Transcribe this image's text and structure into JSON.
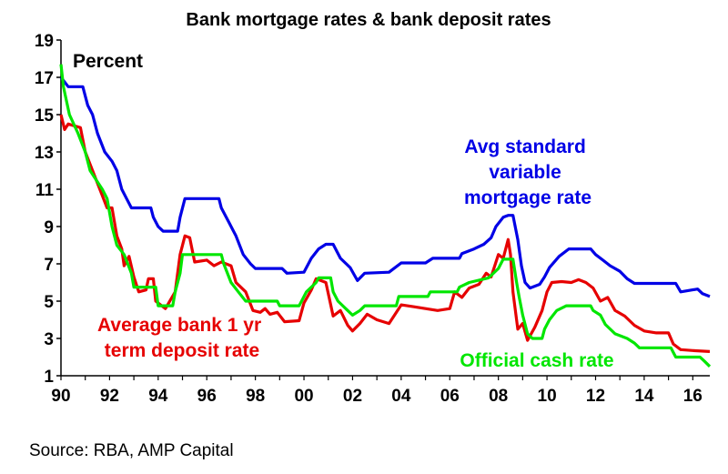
{
  "chart_data": {
    "type": "line",
    "title": "Bank mortgage rates & bank deposit rates",
    "unit_label": "Percent",
    "ylim": [
      1,
      19
    ],
    "xlim": [
      1990,
      2016.7
    ],
    "y_ticks": [
      "1",
      "3",
      "5",
      "7",
      "9",
      "11",
      "13",
      "15",
      "17",
      "19"
    ],
    "x_ticks": [
      "90",
      "92",
      "94",
      "96",
      "98",
      "00",
      "02",
      "04",
      "06",
      "08",
      "10",
      "12",
      "14",
      "16"
    ],
    "grid": false,
    "series": [
      {
        "name": "Avg standard variable mortgage rate",
        "color": "#0000e6",
        "points": [
          [
            1990.0,
            17.0
          ],
          [
            1990.3,
            16.5
          ],
          [
            1990.9,
            16.5
          ],
          [
            1991.1,
            15.5
          ],
          [
            1991.3,
            15.0
          ],
          [
            1991.5,
            14.0
          ],
          [
            1991.8,
            13.0
          ],
          [
            1992.1,
            12.5
          ],
          [
            1992.3,
            12.0
          ],
          [
            1992.5,
            11.0
          ],
          [
            1992.7,
            10.5
          ],
          [
            1992.9,
            10.0
          ],
          [
            1993.7,
            10.0
          ],
          [
            1993.8,
            9.5
          ],
          [
            1994.0,
            9.0
          ],
          [
            1994.2,
            8.75
          ],
          [
            1994.8,
            8.75
          ],
          [
            1994.9,
            9.5
          ],
          [
            1995.1,
            10.5
          ],
          [
            1996.5,
            10.5
          ],
          [
            1996.6,
            10.0
          ],
          [
            1996.9,
            9.25
          ],
          [
            1997.2,
            8.5
          ],
          [
            1997.5,
            7.5
          ],
          [
            1997.8,
            7.0
          ],
          [
            1998.0,
            6.75
          ],
          [
            1999.1,
            6.75
          ],
          [
            1999.3,
            6.5
          ],
          [
            2000.0,
            6.55
          ],
          [
            2000.3,
            7.3
          ],
          [
            2000.6,
            7.8
          ],
          [
            2000.9,
            8.05
          ],
          [
            2001.2,
            8.05
          ],
          [
            2001.5,
            7.3
          ],
          [
            2001.9,
            6.8
          ],
          [
            2002.2,
            6.1
          ],
          [
            2002.5,
            6.5
          ],
          [
            2003.5,
            6.55
          ],
          [
            2004.0,
            7.05
          ],
          [
            2005.0,
            7.05
          ],
          [
            2005.3,
            7.3
          ],
          [
            2006.4,
            7.3
          ],
          [
            2006.5,
            7.55
          ],
          [
            2007.0,
            7.8
          ],
          [
            2007.4,
            8.05
          ],
          [
            2007.7,
            8.4
          ],
          [
            2007.9,
            9.0
          ],
          [
            2008.2,
            9.5
          ],
          [
            2008.4,
            9.6
          ],
          [
            2008.6,
            9.6
          ],
          [
            2008.8,
            8.3
          ],
          [
            2008.95,
            6.9
          ],
          [
            2009.1,
            6.0
          ],
          [
            2009.3,
            5.7
          ],
          [
            2009.7,
            5.9
          ],
          [
            2009.9,
            6.3
          ],
          [
            2010.1,
            6.8
          ],
          [
            2010.5,
            7.4
          ],
          [
            2010.9,
            7.8
          ],
          [
            2011.8,
            7.8
          ],
          [
            2012.0,
            7.5
          ],
          [
            2012.3,
            7.2
          ],
          [
            2012.6,
            6.9
          ],
          [
            2013.0,
            6.6
          ],
          [
            2013.3,
            6.2
          ],
          [
            2013.6,
            5.95
          ],
          [
            2015.3,
            5.95
          ],
          [
            2015.5,
            5.5
          ],
          [
            2016.2,
            5.65
          ],
          [
            2016.4,
            5.4
          ],
          [
            2016.7,
            5.25
          ]
        ]
      },
      {
        "name": "Average bank 1 yr term deposit rate",
        "color": "#e60000",
        "points": [
          [
            1990.0,
            15.0
          ],
          [
            1990.15,
            14.2
          ],
          [
            1990.3,
            14.5
          ],
          [
            1990.8,
            14.3
          ],
          [
            1991.0,
            13.0
          ],
          [
            1991.3,
            12.0
          ],
          [
            1991.6,
            11.0
          ],
          [
            1991.9,
            10.0
          ],
          [
            1992.1,
            10.0
          ],
          [
            1992.3,
            8.5
          ],
          [
            1992.5,
            7.8
          ],
          [
            1992.6,
            6.9
          ],
          [
            1992.8,
            7.4
          ],
          [
            1993.0,
            6.3
          ],
          [
            1993.2,
            5.5
          ],
          [
            1993.5,
            5.6
          ],
          [
            1993.6,
            6.2
          ],
          [
            1993.8,
            6.2
          ],
          [
            1993.9,
            5.0
          ],
          [
            1994.3,
            4.6
          ],
          [
            1994.7,
            5.5
          ],
          [
            1994.9,
            7.5
          ],
          [
            1995.1,
            8.5
          ],
          [
            1995.3,
            8.4
          ],
          [
            1995.5,
            7.1
          ],
          [
            1996.0,
            7.2
          ],
          [
            1996.3,
            6.9
          ],
          [
            1996.6,
            7.1
          ],
          [
            1997.0,
            6.9
          ],
          [
            1997.2,
            6.0
          ],
          [
            1997.6,
            5.5
          ],
          [
            1997.9,
            4.5
          ],
          [
            1998.2,
            4.4
          ],
          [
            1998.4,
            4.6
          ],
          [
            1998.6,
            4.3
          ],
          [
            1998.9,
            4.4
          ],
          [
            1999.2,
            3.9
          ],
          [
            1999.8,
            3.95
          ],
          [
            2000.0,
            4.9
          ],
          [
            2000.3,
            5.6
          ],
          [
            2000.5,
            6.2
          ],
          [
            2000.9,
            6.0
          ],
          [
            2001.2,
            4.2
          ],
          [
            2001.5,
            4.5
          ],
          [
            2001.8,
            3.7
          ],
          [
            2002.0,
            3.4
          ],
          [
            2002.3,
            3.8
          ],
          [
            2002.6,
            4.3
          ],
          [
            2003.0,
            4.0
          ],
          [
            2003.5,
            3.8
          ],
          [
            2004.0,
            4.8
          ],
          [
            2004.5,
            4.7
          ],
          [
            2005.5,
            4.5
          ],
          [
            2006.0,
            4.6
          ],
          [
            2006.2,
            5.5
          ],
          [
            2006.5,
            5.2
          ],
          [
            2006.8,
            5.7
          ],
          [
            2007.2,
            5.9
          ],
          [
            2007.5,
            6.5
          ],
          [
            2007.7,
            6.3
          ],
          [
            2008.0,
            7.5
          ],
          [
            2008.2,
            7.3
          ],
          [
            2008.4,
            8.3
          ],
          [
            2008.5,
            7.5
          ],
          [
            2008.6,
            5.5
          ],
          [
            2008.8,
            3.5
          ],
          [
            2009.0,
            3.8
          ],
          [
            2009.2,
            2.9
          ],
          [
            2009.5,
            3.6
          ],
          [
            2009.8,
            4.5
          ],
          [
            2010.0,
            5.5
          ],
          [
            2010.2,
            6.0
          ],
          [
            2010.6,
            6.05
          ],
          [
            2011.0,
            6.0
          ],
          [
            2011.3,
            6.15
          ],
          [
            2011.6,
            6.0
          ],
          [
            2011.9,
            5.7
          ],
          [
            2012.2,
            5.0
          ],
          [
            2012.5,
            5.2
          ],
          [
            2012.8,
            4.5
          ],
          [
            2013.2,
            4.2
          ],
          [
            2013.6,
            3.7
          ],
          [
            2014.0,
            3.4
          ],
          [
            2014.5,
            3.3
          ],
          [
            2015.0,
            3.3
          ],
          [
            2015.2,
            2.7
          ],
          [
            2015.5,
            2.4
          ],
          [
            2016.0,
            2.35
          ],
          [
            2016.7,
            2.3
          ]
        ]
      },
      {
        "name": "Official cash rate",
        "color": "#00e600",
        "points": [
          [
            1990.0,
            17.7
          ],
          [
            1990.1,
            16.5
          ],
          [
            1990.35,
            15.0
          ],
          [
            1990.7,
            14.0
          ],
          [
            1991.0,
            13.0
          ],
          [
            1991.2,
            12.0
          ],
          [
            1991.7,
            11.0
          ],
          [
            1991.9,
            10.5
          ],
          [
            1992.1,
            9.0
          ],
          [
            1992.3,
            8.0
          ],
          [
            1992.6,
            7.5
          ],
          [
            1992.9,
            6.5
          ],
          [
            1993.0,
            5.75
          ],
          [
            1993.9,
            5.75
          ],
          [
            1994.0,
            4.75
          ],
          [
            1994.6,
            4.75
          ],
          [
            1994.7,
            5.5
          ],
          [
            1994.9,
            6.5
          ],
          [
            1995.0,
            7.5
          ],
          [
            1996.6,
            7.5
          ],
          [
            1996.7,
            7.0
          ],
          [
            1997.0,
            6.0
          ],
          [
            1997.3,
            5.5
          ],
          [
            1997.6,
            5.0
          ],
          [
            1998.9,
            5.0
          ],
          [
            1999.0,
            4.75
          ],
          [
            1999.8,
            4.75
          ],
          [
            1999.9,
            5.0
          ],
          [
            2000.1,
            5.5
          ],
          [
            2000.3,
            5.75
          ],
          [
            2000.5,
            6.0
          ],
          [
            2000.6,
            6.25
          ],
          [
            2001.1,
            6.25
          ],
          [
            2001.2,
            5.5
          ],
          [
            2001.4,
            5.0
          ],
          [
            2001.8,
            4.5
          ],
          [
            2002.0,
            4.25
          ],
          [
            2002.3,
            4.5
          ],
          [
            2002.5,
            4.75
          ],
          [
            2003.8,
            4.75
          ],
          [
            2003.9,
            5.25
          ],
          [
            2005.1,
            5.25
          ],
          [
            2005.2,
            5.5
          ],
          [
            2006.3,
            5.5
          ],
          [
            2006.4,
            5.75
          ],
          [
            2006.8,
            6.0
          ],
          [
            2007.6,
            6.25
          ],
          [
            2008.0,
            6.75
          ],
          [
            2008.2,
            7.25
          ],
          [
            2008.6,
            7.25
          ],
          [
            2008.75,
            6.0
          ],
          [
            2008.85,
            5.25
          ],
          [
            2009.0,
            4.25
          ],
          [
            2009.2,
            3.25
          ],
          [
            2009.4,
            3.0
          ],
          [
            2009.8,
            3.0
          ],
          [
            2009.9,
            3.5
          ],
          [
            2010.1,
            4.0
          ],
          [
            2010.4,
            4.5
          ],
          [
            2010.8,
            4.75
          ],
          [
            2011.8,
            4.75
          ],
          [
            2011.9,
            4.5
          ],
          [
            2012.2,
            4.25
          ],
          [
            2012.4,
            3.75
          ],
          [
            2012.8,
            3.25
          ],
          [
            2013.3,
            3.0
          ],
          [
            2013.6,
            2.75
          ],
          [
            2013.8,
            2.5
          ],
          [
            2015.1,
            2.5
          ],
          [
            2015.2,
            2.25
          ],
          [
            2015.3,
            2.0
          ],
          [
            2016.3,
            2.0
          ],
          [
            2016.5,
            1.75
          ],
          [
            2016.7,
            1.5
          ]
        ]
      }
    ],
    "annotations": [
      {
        "series": 0,
        "lines": [
          "Avg standard",
          "variable",
          "mortgage rate"
        ]
      },
      {
        "series": 1,
        "lines": [
          "Average bank 1 yr",
          "term deposit rate"
        ]
      },
      {
        "series": 2,
        "lines": [
          "Official cash rate"
        ]
      }
    ]
  },
  "source": "Source: RBA, AMP Capital"
}
